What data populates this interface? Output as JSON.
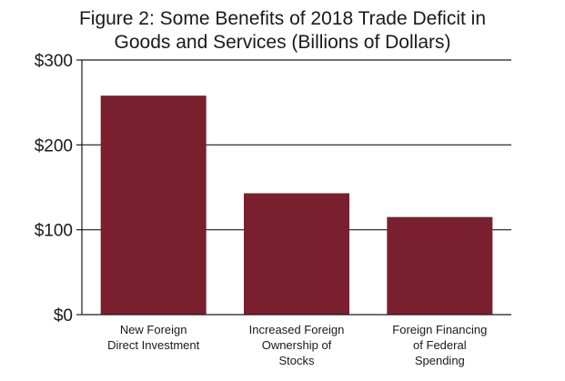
{
  "chart_data": {
    "type": "bar",
    "title_lines": [
      "Figure 2: Some Benefits of 2018 Trade Deficit in",
      "Goods and Services (Billions of Dollars)"
    ],
    "categories": [
      [
        "New Foreign",
        "Direct Investment"
      ],
      [
        "Increased Foreign",
        "Ownership of",
        "Stocks"
      ],
      [
        "Foreign Financing",
        "of Federal",
        "Spending"
      ]
    ],
    "values": [
      258,
      143,
      115
    ],
    "ylim": [
      0,
      300
    ],
    "yticks": [
      0,
      100,
      200,
      300
    ],
    "ytick_labels": [
      "$0",
      "$100",
      "$200",
      "$300"
    ],
    "grid": true,
    "bar_color": "#7a1f2e"
  }
}
